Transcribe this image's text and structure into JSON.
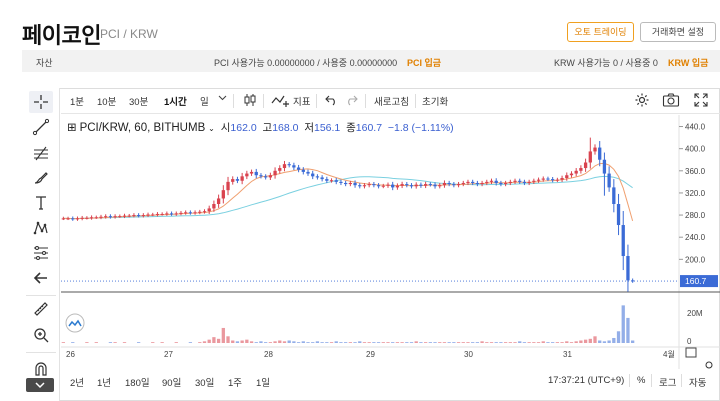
{
  "header": {
    "title": "페이코인",
    "subtitle": "PCI / KRW",
    "auto_trading_label": "오토 트레이딩",
    "screen_settings_label": "거래화면 설정"
  },
  "assets": {
    "label": "자산",
    "pci_available_label": "PCI 사용가능",
    "pci_available": "0.00000000",
    "pci_in_use_label": "/ 사용중",
    "pci_in_use": "0.00000000",
    "pci_deposit_label": "PCI 입금",
    "krw_available_label": "KRW 사용가능",
    "krw_available": "0",
    "krw_in_use_label": "/ 사용중",
    "krw_in_use": "0",
    "krw_deposit_label": "KRW 입금"
  },
  "toolbar": {
    "intervals": [
      "1분",
      "10분",
      "30분",
      "1시간",
      "일"
    ],
    "active_interval": "1시간",
    "indicators_label": "지표",
    "refresh_label": "새로고침",
    "reset_label": "초기화"
  },
  "legend": {
    "symbol": "PCI/KRW, 60, BITHUMB",
    "open_label": "시",
    "open": "162.0",
    "high_label": "고",
    "high": "168.0",
    "low_label": "저",
    "low": "156.1",
    "close_label": "종",
    "close": "160.7",
    "change": "−1.8 (−1.11%)"
  },
  "bottom": {
    "ranges": [
      "2년",
      "1년",
      "180일",
      "90일",
      "30일",
      "1주",
      "1일"
    ],
    "time": "17:37:21 (UTC+9)",
    "percent_label": "%",
    "log_label": "로그",
    "auto_label": "자동"
  },
  "colors": {
    "up": "#d9434f",
    "down": "#3b6bd6",
    "ma_orange": "#f0a070",
    "ma_cyan": "#7ad0e0",
    "last_price_bg": "#3b6bd6",
    "accent": "#e08000"
  },
  "chart_data": {
    "type": "candlestick",
    "symbol": "PCI/KRW",
    "interval": "60",
    "exchange": "BITHUMB",
    "x_ticks": [
      "26",
      "27",
      "28",
      "29",
      "30",
      "31",
      "4월"
    ],
    "y_ticks": [
      440.0,
      400.0,
      360.0,
      320.0,
      280.0,
      240.0,
      200.0,
      160.0
    ],
    "y_range": [
      150,
      450
    ],
    "volume_ticks": [
      "20M",
      "0"
    ],
    "last_price": "160.7",
    "close_series": [
      274,
      274,
      273,
      274,
      275,
      275,
      276,
      276,
      277,
      278,
      277,
      278,
      278,
      279,
      279,
      280,
      279,
      280,
      281,
      281,
      282,
      282,
      283,
      282,
      283,
      284,
      285,
      284,
      285,
      286,
      287,
      292,
      300,
      310,
      325,
      340,
      345,
      342,
      350,
      355,
      358,
      352,
      350,
      348,
      352,
      360,
      365,
      372,
      370,
      366,
      362,
      358,
      355,
      350,
      348,
      345,
      342,
      343,
      340,
      338,
      336,
      338,
      334,
      332,
      334,
      336,
      334,
      332,
      333,
      335,
      330,
      333,
      336,
      334,
      332,
      335,
      333,
      336,
      335,
      332,
      334,
      338,
      336,
      334,
      336,
      338,
      340,
      338,
      336,
      338,
      340,
      342,
      338,
      336,
      338,
      340,
      342,
      340,
      338,
      340,
      342,
      344,
      346,
      345,
      343,
      344,
      347,
      352,
      355,
      360,
      365,
      375,
      395,
      402,
      380,
      355,
      330,
      300,
      262,
      206,
      162,
      161
    ],
    "volume_series": [
      1,
      0,
      1,
      0,
      0,
      1,
      0,
      1,
      0,
      0,
      1,
      1,
      0,
      1,
      0,
      0,
      1,
      0,
      0,
      1,
      0,
      1,
      0,
      0,
      1,
      0,
      0,
      1,
      0,
      1,
      2,
      4,
      7,
      5,
      18,
      8,
      3,
      2,
      3,
      4,
      2,
      1,
      2,
      1,
      1,
      2,
      3,
      2,
      3,
      2,
      1,
      2,
      1,
      1,
      2,
      1,
      1,
      1,
      2,
      1,
      1,
      1,
      1,
      2,
      1,
      1,
      1,
      1,
      1,
      1,
      1,
      1,
      1,
      1,
      1,
      2,
      1,
      1,
      1,
      1,
      1,
      1,
      1,
      1,
      1,
      1,
      1,
      1,
      1,
      2,
      1,
      1,
      1,
      1,
      1,
      1,
      1,
      2,
      1,
      1,
      1,
      1,
      2,
      1,
      1,
      1,
      1,
      2,
      1,
      2,
      3,
      4,
      5,
      8,
      3,
      2,
      3,
      6,
      14,
      45,
      30,
      3
    ]
  }
}
